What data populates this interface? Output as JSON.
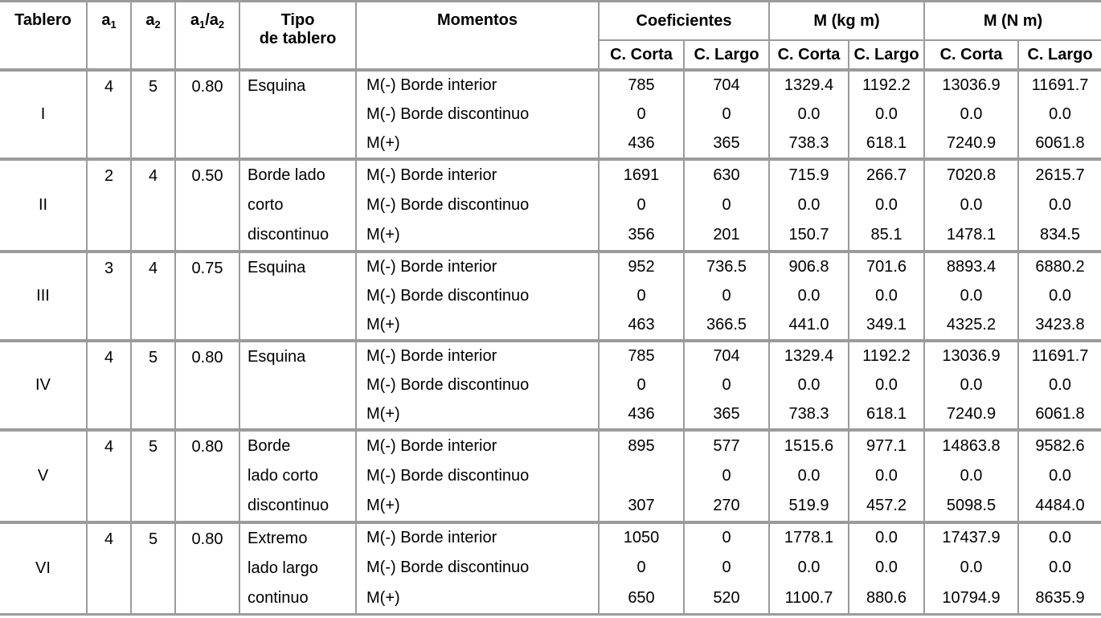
{
  "colors": {
    "border": "#9b9b9b",
    "text": "#000000",
    "background": "#ffffff"
  },
  "table": {
    "header": {
      "tablero": "Tablero",
      "a1_base": "a",
      "a1_sub": "1",
      "a2_base": "a",
      "a2_sub": "2",
      "ratio_base1": "a",
      "ratio_sub1": "1",
      "ratio_sep": "/",
      "ratio_base2": "a",
      "ratio_sub2": "2",
      "tipo_line1": "Tipo",
      "tipo_line2": "de tablero",
      "momentos": "Momentos",
      "coeficientes": "Coeficientes",
      "m_kgm": "M (kg m)",
      "m_nm": "M (N m)",
      "sub_c_corta": "C. Corta",
      "sub_c_largo": "C. Largo"
    },
    "groups": [
      {
        "tablero": "I",
        "a1": "4",
        "a2": "5",
        "ratio": "0.80",
        "tipo_lines": [
          "Esquina"
        ],
        "rows": [
          {
            "momento": "M(-) Borde interior",
            "values": [
              "785",
              "704",
              "1329.4",
              "1192.2",
              "13036.9",
              "11691.7"
            ]
          },
          {
            "momento": "M(-) Borde discontinuo",
            "values": [
              "0",
              "0",
              "0.0",
              "0.0",
              "0.0",
              "0.0"
            ]
          },
          {
            "momento": "M(+)",
            "values": [
              "436",
              "365",
              "738.3",
              "618.1",
              "7240.9",
              "6061.8"
            ]
          }
        ]
      },
      {
        "tablero": "II",
        "a1": "2",
        "a2": "4",
        "ratio": "0.50",
        "tipo_lines": [
          "Borde lado",
          "corto",
          "discontinuo"
        ],
        "rows": [
          {
            "momento": "M(-) Borde interior",
            "values": [
              "1691",
              "630",
              "715.9",
              "266.7",
              "7020.8",
              "2615.7"
            ]
          },
          {
            "momento": "M(-) Borde discontinuo",
            "values": [
              "0",
              "0",
              "0.0",
              "0.0",
              "0.0",
              "0.0"
            ]
          },
          {
            "momento": "M(+)",
            "values": [
              "356",
              "201",
              "150.7",
              "85.1",
              "1478.1",
              "834.5"
            ]
          }
        ]
      },
      {
        "tablero": "III",
        "a1": "3",
        "a2": "4",
        "ratio": "0.75",
        "tipo_lines": [
          "Esquina"
        ],
        "rows": [
          {
            "momento": "M(-) Borde interior",
            "values": [
              "952",
              "736.5",
              "906.8",
              "701.6",
              "8893.4",
              "6880.2"
            ]
          },
          {
            "momento": "M(-) Borde discontinuo",
            "values": [
              "0",
              "0",
              "0.0",
              "0.0",
              "0.0",
              "0.0"
            ]
          },
          {
            "momento": "M(+)",
            "values": [
              "463",
              "366.5",
              "441.0",
              "349.1",
              "4325.2",
              "3423.8"
            ]
          }
        ]
      },
      {
        "tablero": "IV",
        "a1": "4",
        "a2": "5",
        "ratio": "0.80",
        "tipo_lines": [
          "Esquina"
        ],
        "rows": [
          {
            "momento": "M(-) Borde interior",
            "values": [
              "785",
              "704",
              "1329.4",
              "1192.2",
              "13036.9",
              "11691.7"
            ]
          },
          {
            "momento": "M(-) Borde discontinuo",
            "values": [
              "0",
              "0",
              "0.0",
              "0.0",
              "0.0",
              "0.0"
            ]
          },
          {
            "momento": "M(+)",
            "values": [
              "436",
              "365",
              "738.3",
              "618.1",
              "7240.9",
              "6061.8"
            ]
          }
        ]
      },
      {
        "tablero": "V",
        "a1": "4",
        "a2": "5",
        "ratio": "0.80",
        "tipo_lines": [
          "Borde",
          "lado corto",
          "discontinuo"
        ],
        "rows": [
          {
            "momento": "M(-) Borde interior",
            "values": [
              "895",
              "577",
              "1515.6",
              "977.1",
              "14863.8",
              "9582.6"
            ]
          },
          {
            "momento": "M(-) Borde discontinuo",
            "values": [
              "",
              "0",
              "0.0",
              "0.0",
              "0.0",
              "0.0"
            ]
          },
          {
            "momento": "M(+)",
            "values": [
              "307",
              "270",
              "519.9",
              "457.2",
              "5098.5",
              "4484.0"
            ]
          }
        ]
      },
      {
        "tablero": "VI",
        "a1": "4",
        "a2": "5",
        "ratio": "0.80",
        "tipo_lines": [
          "Extremo",
          "lado largo",
          "continuo"
        ],
        "rows": [
          {
            "momento": "M(-) Borde interior",
            "values": [
              "1050",
              "0",
              "1778.1",
              "0.0",
              "17437.9",
              "0.0"
            ]
          },
          {
            "momento": "M(-) Borde discontinuo",
            "values": [
              "0",
              "0",
              "0.0",
              "0.0",
              "0.0",
              "0.0"
            ]
          },
          {
            "momento": "M(+)",
            "values": [
              "650",
              "520",
              "1100.7",
              "880.6",
              "10794.9",
              "8635.9"
            ]
          }
        ]
      }
    ]
  }
}
